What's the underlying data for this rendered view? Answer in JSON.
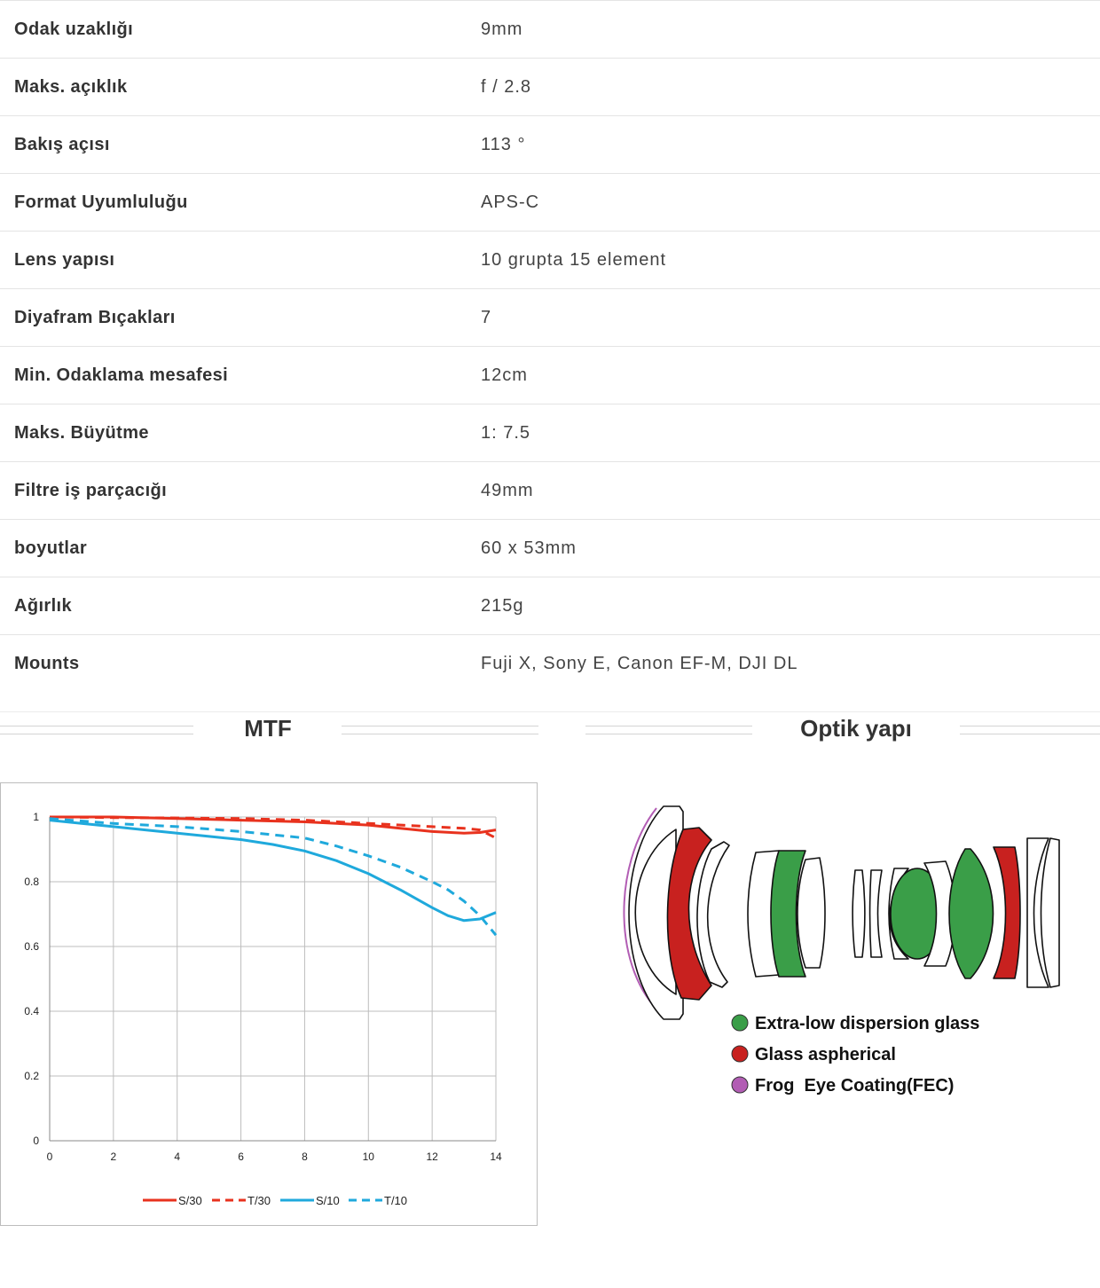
{
  "specs": [
    {
      "label": "Odak uzaklığı",
      "value": "9mm"
    },
    {
      "label": "Maks. açıklık",
      "value": "f / 2.8"
    },
    {
      "label": "Bakış açısı",
      "value": "113 °"
    },
    {
      "label": "Format Uyumluluğu",
      "value": "APS-C"
    },
    {
      "label": "Lens yapısı",
      "value": "10 grupta 15 element"
    },
    {
      "label": "Diyafram Bıçakları",
      "value": "7"
    },
    {
      "label": "Min. Odaklama mesafesi",
      "value": "12cm"
    },
    {
      "label": "Maks. Büyütme",
      "value": "1: 7.5"
    },
    {
      "label": "Filtre iş parçacığı",
      "value": "49mm"
    },
    {
      "label": "boyutlar",
      "value": "60 x 53mm"
    },
    {
      "label": "Ağırlık",
      "value": "215g"
    },
    {
      "label": "Mounts",
      "value": "Fuji X, Sony E, Canon EF-M, DJI DL"
    }
  ],
  "sections": {
    "mtf_title": "MTF",
    "optics_title": "Optik yapı"
  },
  "chart_data": {
    "type": "line",
    "title": "",
    "xlabel": "",
    "ylabel": "",
    "xlim": [
      0,
      14
    ],
    "ylim": [
      0,
      1
    ],
    "xticks": [
      0,
      2,
      4,
      6,
      8,
      10,
      12,
      14
    ],
    "yticks": [
      0,
      0.2,
      0.4,
      0.6,
      0.8,
      1
    ],
    "ytick_labels": [
      "0",
      "0.2",
      "0.4",
      "0.6",
      "0.8",
      "1"
    ],
    "grid": true,
    "legend_position": "bottom",
    "series": [
      {
        "name": "S/30",
        "color": "#e8321e",
        "dash": false,
        "x": [
          0,
          2,
          4,
          6,
          8,
          10,
          11,
          12,
          13,
          13.5,
          14
        ],
        "y": [
          1.0,
          1.0,
          0.995,
          0.99,
          0.985,
          0.975,
          0.965,
          0.955,
          0.95,
          0.952,
          0.96
        ]
      },
      {
        "name": "T/30",
        "color": "#e8321e",
        "dash": true,
        "x": [
          0,
          2,
          4,
          6,
          8,
          10,
          12,
          13,
          13.5,
          14
        ],
        "y": [
          1.0,
          0.998,
          0.997,
          0.995,
          0.99,
          0.98,
          0.97,
          0.965,
          0.96,
          0.935
        ]
      },
      {
        "name": "S/10",
        "color": "#1fa9dc",
        "dash": false,
        "x": [
          0,
          1,
          2,
          3,
          4,
          5,
          6,
          7,
          8,
          9,
          10,
          11,
          12,
          12.5,
          13,
          13.5,
          14
        ],
        "y": [
          0.99,
          0.98,
          0.97,
          0.96,
          0.95,
          0.94,
          0.93,
          0.915,
          0.895,
          0.865,
          0.825,
          0.775,
          0.72,
          0.695,
          0.68,
          0.685,
          0.705
        ]
      },
      {
        "name": "T/10",
        "color": "#1fa9dc",
        "dash": true,
        "x": [
          0,
          2,
          4,
          6,
          8,
          9,
          10,
          11,
          12,
          12.5,
          13,
          13.5,
          14
        ],
        "y": [
          0.995,
          0.98,
          0.97,
          0.955,
          0.935,
          0.91,
          0.88,
          0.845,
          0.8,
          0.775,
          0.74,
          0.695,
          0.635
        ]
      }
    ]
  },
  "optics_legend": [
    {
      "label": "Extra-low dispersion glass",
      "color": "#3a9e48"
    },
    {
      "label": "Glass aspherical",
      "color": "#c8211f"
    },
    {
      "label": "Frog  Eye Coating(FEC)",
      "color": "#b25db4"
    }
  ]
}
